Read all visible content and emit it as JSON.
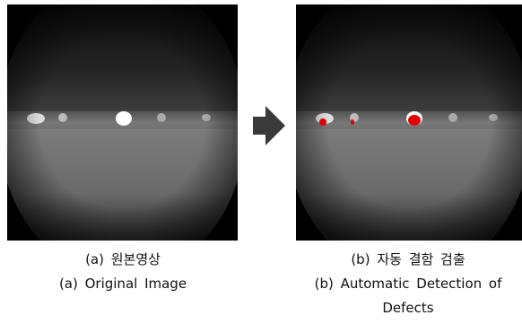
{
  "panels": [
    {
      "caption_ko": "(a) 원본영상",
      "caption_en": "(a) Original Image"
    },
    {
      "caption_ko": "(b) 자동 결함 검출",
      "caption_en": "(b) Automatic Detection of Defects"
    }
  ]
}
